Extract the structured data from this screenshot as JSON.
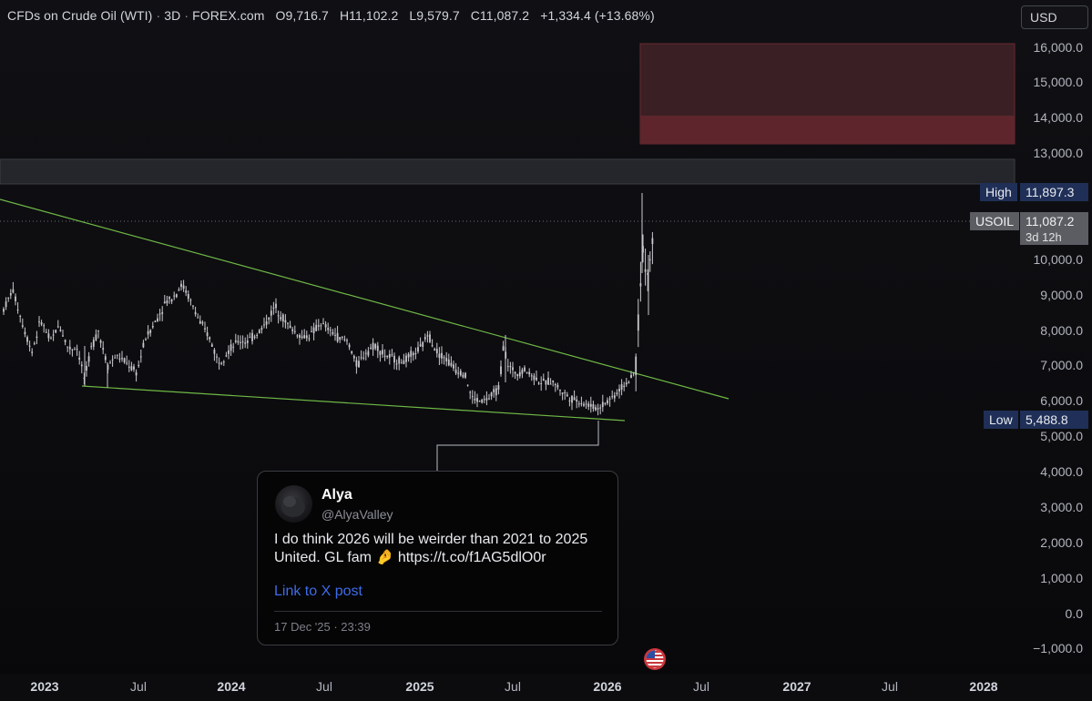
{
  "header": {
    "symbol_title": "CFDs on Crude Oil (WTI)",
    "interval": "3D",
    "source": "FOREX.com",
    "open": "O9,716.7",
    "high": "H11,102.2",
    "low": "L9,579.7",
    "close": "C11,087.2",
    "change": "+1,334.4 (+13.68%)"
  },
  "currency_selector": "USD",
  "price_scale": {
    "labels": [
      "16,000.0",
      "15,000.0",
      "14,000.0",
      "13,000.0",
      "10,000.0",
      "9,000.0",
      "8,000.0",
      "7,000.0",
      "6,000.0",
      "5,000.0",
      "4,000.0",
      "3,000.0",
      "2,000.0",
      "1,000.0",
      "0.0",
      "−1,000.0"
    ]
  },
  "tags": {
    "high_label": "High",
    "high_value": "11,897.3",
    "last_symbol": "USOIL",
    "last_value": "11,087.2",
    "countdown": "3d 12h",
    "low_label": "Low",
    "low_value": "5,488.8"
  },
  "time_axis": {
    "labels": [
      {
        "text": "2023",
        "bold": true
      },
      {
        "text": "Jul",
        "bold": false
      },
      {
        "text": "2024",
        "bold": true
      },
      {
        "text": "Jul",
        "bold": false
      },
      {
        "text": "2025",
        "bold": true
      },
      {
        "text": "Jul",
        "bold": false
      },
      {
        "text": "2026",
        "bold": true
      },
      {
        "text": "Jul",
        "bold": false
      },
      {
        "text": "2027",
        "bold": true
      },
      {
        "text": "Jul",
        "bold": false
      },
      {
        "text": "2028",
        "bold": true
      }
    ]
  },
  "tweet": {
    "name": "Alya",
    "handle": "@AlyaValley",
    "text": "I do think 2026 will be weirder than 2021 to 2025 United. GL fam 🤌 https://t.co/f1AG5dlO0r",
    "link_label": "Link to X post",
    "date": "17 Dec '25 · 23:39"
  },
  "colors": {
    "background": "#101014",
    "candle": "#c8c9cc",
    "trendline": "#6fb845",
    "zone_red_light": "#3a1f24",
    "zone_red_dark": "#5e262c",
    "zone_grey": "#24262b",
    "tag_blue": "#1f2f57"
  },
  "icons": {
    "flag": "us-flag-icon",
    "avatar": "user-avatar"
  }
}
